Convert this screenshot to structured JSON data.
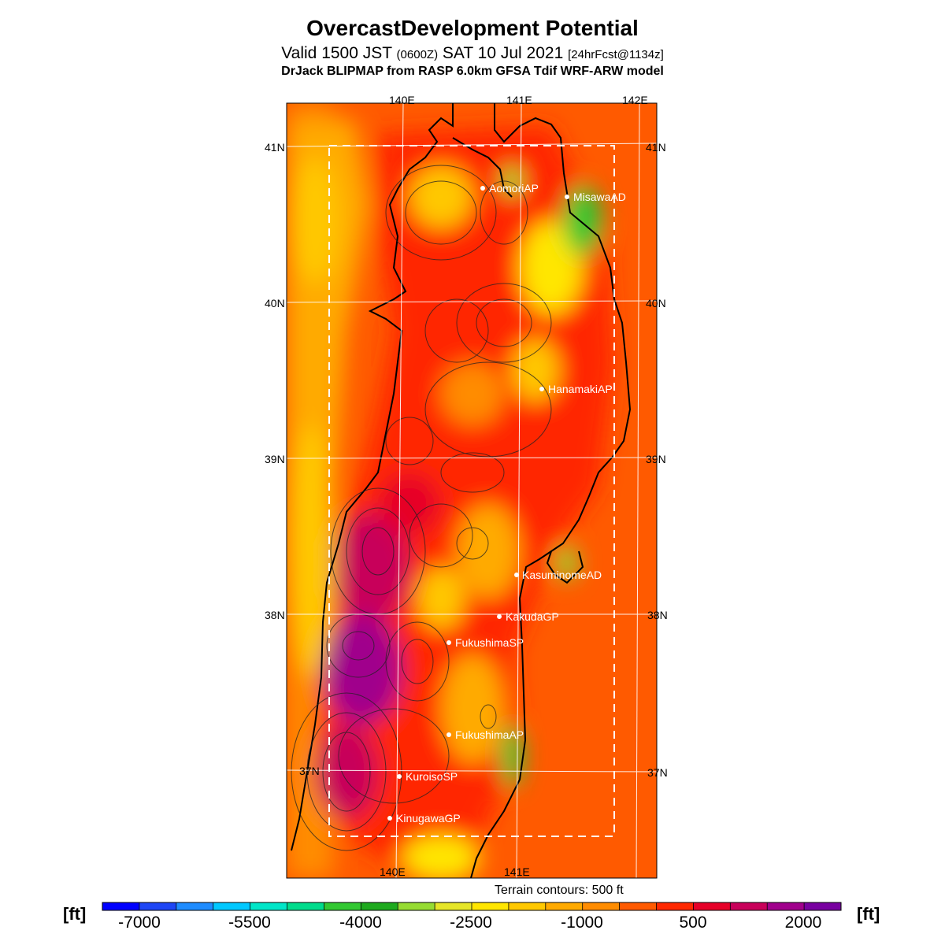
{
  "header": {
    "title": "OvercastDevelopment Potential",
    "subtitle_main": "Valid 1500 JST",
    "subtitle_utc": "(0600Z)",
    "subtitle_date": "SAT 10 Jul 2021",
    "subtitle_fcst": "[24hrFcst@1134z]",
    "model": "DrJack BLIPMAP from RASP 6.0km GFSA Tdif WRF-ARW model"
  },
  "map": {
    "lon_labels_top": [
      "140E",
      "141E",
      "142E"
    ],
    "lon_labels_bottom": [
      "140E",
      "141E"
    ],
    "lat_labels_left": [
      "41N",
      "40N",
      "39N",
      "38N",
      "37N"
    ],
    "lat_labels_right": [
      "41N",
      "40N",
      "39N",
      "38N",
      "37N"
    ],
    "stations": [
      {
        "name": "AomoriAP"
      },
      {
        "name": "MisawaAD"
      },
      {
        "name": "HanamakiAP"
      },
      {
        "name": "KasuminomeAD"
      },
      {
        "name": "KakudaGP"
      },
      {
        "name": "FukushimaSP"
      },
      {
        "name": "FukushimaAP"
      },
      {
        "name": "KuroisoSP"
      },
      {
        "name": "KinugawaGP"
      }
    ],
    "terrain_note": "Terrain contours: 500 ft"
  },
  "legend": {
    "unit": "[ft]",
    "tick_labels": [
      "-7000",
      "-5500",
      "-4000",
      "-2500",
      "-1000",
      "500",
      "2000"
    ],
    "colors": [
      "#0000ff",
      "#1e46f5",
      "#1e8cff",
      "#00c8ff",
      "#00e6c8",
      "#00dc8c",
      "#32c832",
      "#1eaa1e",
      "#96dc32",
      "#e6e628",
      "#ffe600",
      "#ffc800",
      "#ffaa00",
      "#ff8c00",
      "#ff5a00",
      "#ff2800",
      "#e60028",
      "#c8005a",
      "#a0008c",
      "#7800a0"
    ]
  }
}
